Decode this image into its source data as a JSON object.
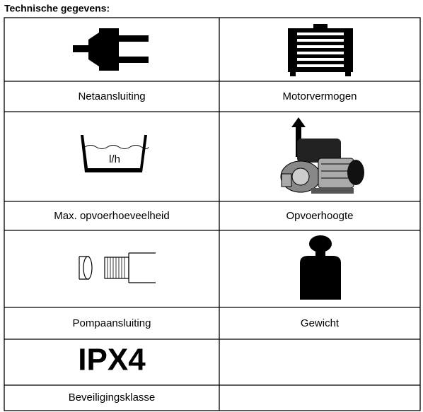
{
  "header": {
    "title": "Technische gegevens:"
  },
  "table": {
    "rows": [
      [
        "Netaansluiting",
        "Motorvermogen"
      ],
      [
        "Max. opvoerhoeveelheid",
        "Opvoerhoogte"
      ],
      [
        "Pompaansluiting",
        "Gewicht"
      ],
      [
        "Beveiligingsklasse"
      ]
    ]
  },
  "icons": {
    "flow_unit": "l/h",
    "protection": "IPX4"
  }
}
